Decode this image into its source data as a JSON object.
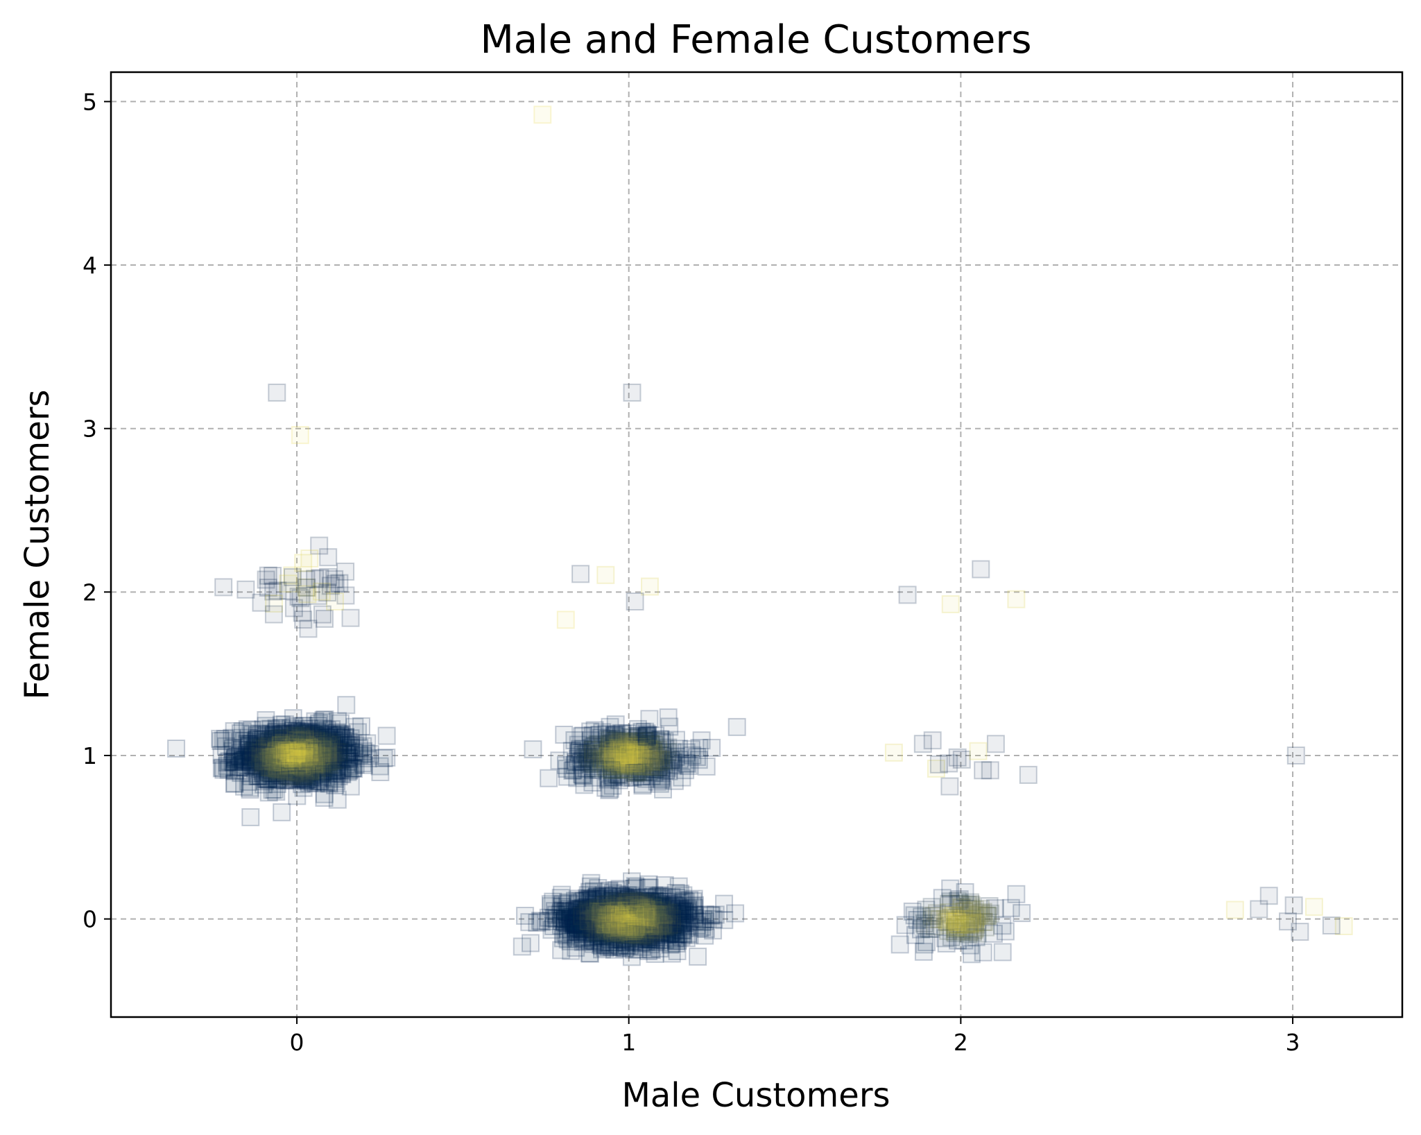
{
  "chart_data": {
    "type": "scatter",
    "title": "Male and Female Customers",
    "xlabel": "Male Customers",
    "ylabel": "Female Customers",
    "xlim": [
      -0.56,
      3.33
    ],
    "ylim": [
      -0.6,
      5.18
    ],
    "xticks": [
      0,
      1,
      2,
      3
    ],
    "yticks": [
      0,
      1,
      2,
      3,
      4,
      5
    ],
    "grid": true,
    "marker": "square",
    "jitter": true,
    "colormap": [
      "#00204c",
      "#ffe945"
    ],
    "series": [
      {
        "description": "jittered customer counts; color encodes a third variable (cividis colormap)",
        "clusters": [
          {
            "x": 0,
            "y": 1,
            "count": 900,
            "spread_x": 0.09,
            "spread_y": 0.09
          },
          {
            "x": 1,
            "y": 0,
            "count": 1100,
            "spread_x": 0.1,
            "spread_y": 0.08
          },
          {
            "x": 1,
            "y": 1,
            "count": 420,
            "spread_x": 0.09,
            "spread_y": 0.08
          },
          {
            "x": 0,
            "y": 2,
            "count": 45,
            "spread_x": 0.09,
            "spread_y": 0.09
          },
          {
            "x": 2,
            "y": 0,
            "count": 120,
            "spread_x": 0.08,
            "spread_y": 0.08
          },
          {
            "x": 2,
            "y": 1,
            "count": 14,
            "spread_x": 0.1,
            "spread_y": 0.1
          },
          {
            "x": 1,
            "y": 2,
            "count": 4,
            "spread_x": 0.08,
            "spread_y": 0.08
          },
          {
            "x": 2,
            "y": 2,
            "count": 4,
            "spread_x": 0.08,
            "spread_y": 0.08
          },
          {
            "x": 3,
            "y": 0,
            "count": 9,
            "spread_x": 0.1,
            "spread_y": 0.09
          }
        ],
        "outliers": [
          {
            "x": -0.06,
            "y": 3.22
          },
          {
            "x": 0.01,
            "y": 2.96
          },
          {
            "x": 1.01,
            "y": 3.22
          },
          {
            "x": 0.74,
            "y": 4.92
          },
          {
            "x": 3.01,
            "y": 1.0
          },
          {
            "x": 0.81,
            "y": 1.83
          }
        ]
      }
    ]
  }
}
